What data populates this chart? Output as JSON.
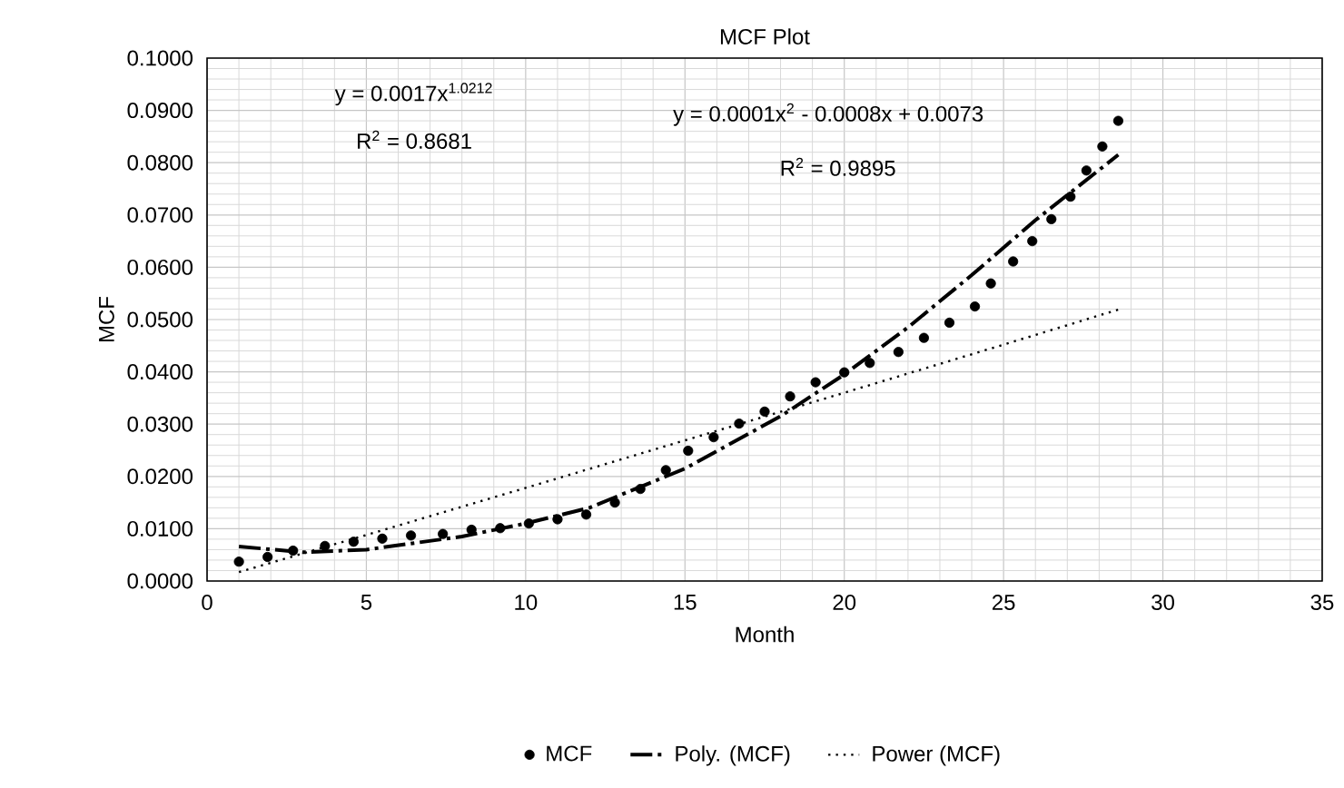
{
  "chart_data": {
    "type": "scatter",
    "title": "MCF Plot",
    "xlabel": "Month",
    "ylabel": "MCF",
    "xlim": [
      0,
      35
    ],
    "xticks": [
      0,
      5,
      10,
      15,
      20,
      25,
      30,
      35
    ],
    "ylim": [
      0,
      0.1
    ],
    "yticks": [
      {
        "value": 0,
        "label": "0.0000"
      },
      {
        "value": 0.01,
        "label": "0.0100"
      },
      {
        "value": 0.02,
        "label": "0.0200"
      },
      {
        "value": 0.03,
        "label": "0.0300"
      },
      {
        "value": 0.04,
        "label": "0.0400"
      },
      {
        "value": 0.05,
        "label": "0.0500"
      },
      {
        "value": 0.06,
        "label": "0.0600"
      },
      {
        "value": 0.07,
        "label": "0.0700"
      },
      {
        "value": 0.08,
        "label": "0.0800"
      },
      {
        "value": 0.09,
        "label": "0.0900"
      },
      {
        "value": 0.1,
        "label": "0.1000"
      }
    ],
    "grid": true,
    "legend": "bottom",
    "annotations": [
      "y = 0.0017x$^{1.0212}$",
      "R$^{2}$ = 0.8681",
      "y = 0.0001x$^{2}$ - 0.0008x + 0.0073",
      "R$^{2}$ = 0.9895"
    ],
    "series": [
      {
        "name": "MCF",
        "type": "scatter",
        "marker": "circle",
        "color": "#000000",
        "x": [
          1.0,
          1.9,
          2.7,
          3.7,
          4.6,
          5.5,
          6.4,
          7.4,
          8.3,
          9.2,
          10.1,
          11.0,
          11.9,
          12.8,
          13.6,
          14.4,
          15.1,
          15.9,
          16.7,
          17.5,
          18.3,
          19.1,
          20.0,
          20.8,
          21.7,
          22.5,
          23.3,
          24.1,
          24.6,
          25.3,
          25.9,
          26.5,
          27.1,
          27.6,
          28.1,
          28.6
        ],
        "values": [
          0.0037,
          0.0046,
          0.0058,
          0.0067,
          0.0075,
          0.0081,
          0.0087,
          0.009,
          0.0098,
          0.0101,
          0.011,
          0.0118,
          0.0127,
          0.015,
          0.0176,
          0.0212,
          0.0249,
          0.0275,
          0.0301,
          0.0324,
          0.0353,
          0.038,
          0.0399,
          0.0417,
          0.0438,
          0.0465,
          0.0494,
          0.0525,
          0.0569,
          0.0611,
          0.065,
          0.0692,
          0.0735,
          0.0785,
          0.0831,
          0.088
        ]
      },
      {
        "name": "Poly. (MCF)",
        "type": "line",
        "marker": "none",
        "line_style": "dashed",
        "color": "#000000",
        "x": [
          1,
          3,
          5,
          8,
          10,
          12,
          15,
          18,
          20,
          22,
          24,
          26,
          28.6
        ],
        "values": [
          0.0066,
          0.0055,
          0.006,
          0.0085,
          0.011,
          0.014,
          0.0215,
          0.0315,
          0.0395,
          0.0485,
          0.0585,
          0.069,
          0.0815
        ]
      },
      {
        "name": "Power (MCF)",
        "type": "line",
        "marker": "none",
        "line_style": "dotted",
        "color": "#000000",
        "x": [
          1,
          5,
          10,
          15,
          20,
          25,
          28.6
        ],
        "values": [
          0.0017,
          0.0088,
          0.0178,
          0.0269,
          0.036,
          0.0452,
          0.0519
        ]
      }
    ]
  }
}
